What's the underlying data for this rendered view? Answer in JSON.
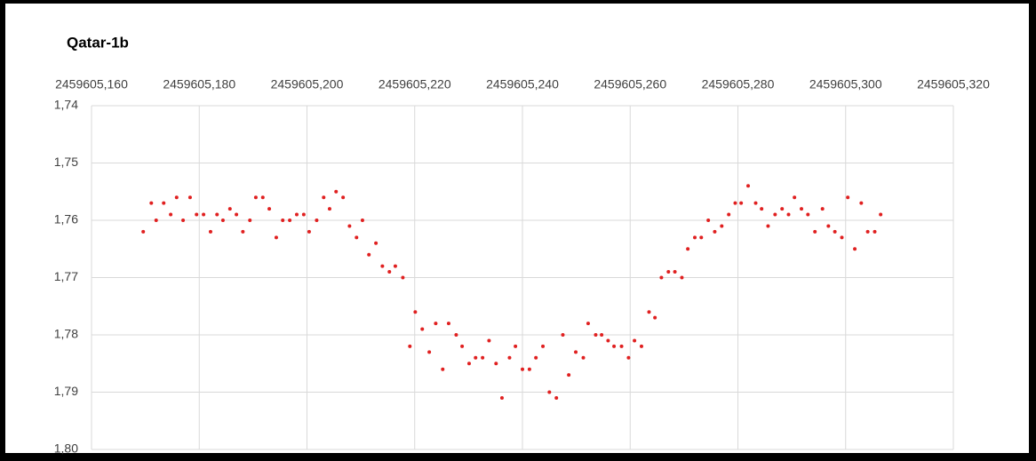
{
  "chart_data": {
    "type": "scatter",
    "title": "Qatar-1b",
    "x": [
      2459605.1696,
      2459605.1711,
      2459605.172,
      2459605.1734,
      2459605.1747,
      2459605.1758,
      2459605.177,
      2459605.1783,
      2459605.1795,
      2459605.1808,
      2459605.1821,
      2459605.1833,
      2459605.1844,
      2459605.1857,
      2459605.1869,
      2459605.1881,
      2459605.1894,
      2459605.1905,
      2459605.1918,
      2459605.193,
      2459605.1943,
      2459605.1955,
      2459605.1968,
      2459605.1981,
      2459605.1994,
      2459605.2004,
      2459605.2018,
      2459605.2031,
      2459605.2042,
      2459605.2054,
      2459605.2067,
      2459605.2079,
      2459605.2092,
      2459605.2103,
      2459605.2115,
      2459605.2128,
      2459605.214,
      2459605.2153,
      2459605.2164,
      2459605.2178,
      2459605.2191,
      2459605.2201,
      2459605.2214,
      2459605.2227,
      2459605.2239,
      2459605.2252,
      2459605.2263,
      2459605.2277,
      2459605.2288,
      2459605.2301,
      2459605.2313,
      2459605.2326,
      2459605.2338,
      2459605.2351,
      2459605.2362,
      2459605.2376,
      2459605.2387,
      2459605.24,
      2459605.2413,
      2459605.2425,
      2459605.2438,
      2459605.245,
      2459605.2463,
      2459605.2475,
      2459605.2486,
      2459605.2499,
      2459605.2513,
      2459605.2522,
      2459605.2536,
      2459605.2547,
      2459605.2559,
      2459605.257,
      2459605.2584,
      2459605.2597,
      2459605.2608,
      2459605.2621,
      2459605.2635,
      2459605.2646,
      2459605.2658,
      2459605.2671,
      2459605.2683,
      2459605.2696,
      2459605.2707,
      2459605.272,
      2459605.2732,
      2459605.2745,
      2459605.2757,
      2459605.277,
      2459605.2783,
      2459605.2795,
      2459605.2806,
      2459605.2819,
      2459605.2833,
      2459605.2844,
      2459605.2856,
      2459605.2869,
      2459605.2882,
      2459605.2894,
      2459605.2905,
      2459605.2918,
      2459605.293,
      2459605.2943,
      2459605.2957,
      2459605.2968,
      2459605.298,
      2459605.2993,
      2459605.3004,
      2459605.3017,
      2459605.3029,
      2459605.3041,
      2459605.3054,
      2459605.3065
    ],
    "values": [
      1.762,
      1.757,
      1.76,
      1.757,
      1.759,
      1.756,
      1.76,
      1.756,
      1.759,
      1.759,
      1.762,
      1.759,
      1.76,
      1.758,
      1.759,
      1.762,
      1.76,
      1.756,
      1.756,
      1.758,
      1.763,
      1.76,
      1.76,
      1.759,
      1.759,
      1.762,
      1.76,
      1.756,
      1.758,
      1.755,
      1.756,
      1.761,
      1.763,
      1.76,
      1.766,
      1.764,
      1.768,
      1.769,
      1.768,
      1.77,
      1.782,
      1.776,
      1.779,
      1.783,
      1.778,
      1.786,
      1.778,
      1.78,
      1.782,
      1.785,
      1.784,
      1.784,
      1.781,
      1.785,
      1.791,
      1.784,
      1.782,
      1.786,
      1.786,
      1.784,
      1.782,
      1.79,
      1.791,
      1.78,
      1.787,
      1.783,
      1.784,
      1.778,
      1.78,
      1.78,
      1.781,
      1.782,
      1.782,
      1.784,
      1.781,
      1.782,
      1.776,
      1.777,
      1.77,
      1.769,
      1.769,
      1.77,
      1.765,
      1.763,
      1.763,
      1.76,
      1.762,
      1.761,
      1.759,
      1.757,
      1.757,
      1.754,
      1.757,
      1.758,
      1.761,
      1.759,
      1.758,
      1.759,
      1.756,
      1.758,
      1.759,
      1.762,
      1.758,
      1.761,
      1.762,
      1.763,
      1.756,
      1.765,
      1.757,
      1.762,
      1.762,
      1.759
    ],
    "color": "#e02020",
    "xlim": [
      2459605.16,
      2459605.32
    ],
    "xticks": [
      {
        "value": 2459605.16,
        "label": "2459605,160"
      },
      {
        "value": 2459605.18,
        "label": "2459605,180"
      },
      {
        "value": 2459605.2,
        "label": "2459605,200"
      },
      {
        "value": 2459605.22,
        "label": "2459605,220"
      },
      {
        "value": 2459605.24,
        "label": "2459605,240"
      },
      {
        "value": 2459605.26,
        "label": "2459605,260"
      },
      {
        "value": 2459605.28,
        "label": "2459605,280"
      },
      {
        "value": 2459605.3,
        "label": "2459605,300"
      },
      {
        "value": 2459605.32,
        "label": "2459605,320"
      }
    ],
    "ylim": [
      1.74,
      1.8
    ],
    "yticks": [
      {
        "value": 1.74,
        "label": "1,74"
      },
      {
        "value": 1.75,
        "label": "1,75"
      },
      {
        "value": 1.76,
        "label": "1,76"
      },
      {
        "value": 1.77,
        "label": "1,77"
      },
      {
        "value": 1.78,
        "label": "1,78"
      },
      {
        "value": 1.79,
        "label": "1,79"
      },
      {
        "value": 1.8,
        "label": "1,80"
      }
    ],
    "y_reversed": true,
    "grid": true
  }
}
